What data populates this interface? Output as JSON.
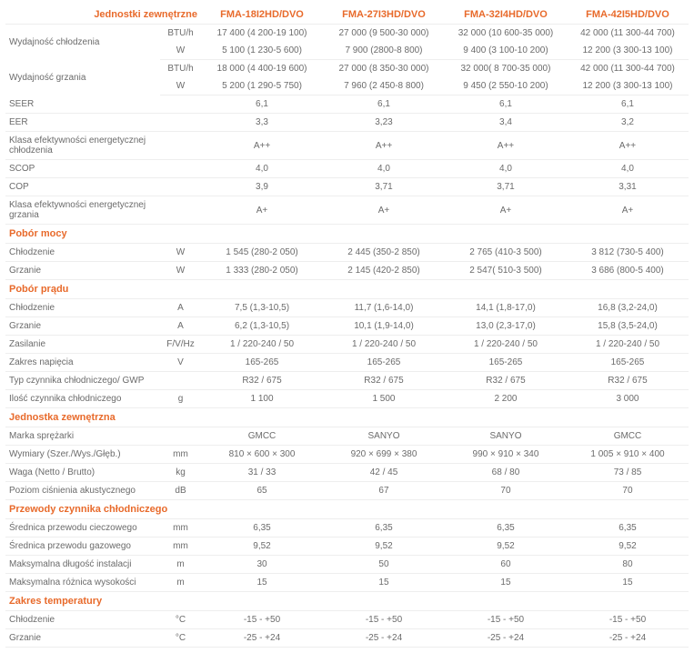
{
  "colors": {
    "accent": "#e86a2b",
    "text": "#6b6b6b",
    "border": "#eeeeee",
    "bg": "#ffffff"
  },
  "fontsize_base": 10,
  "fontsize_header": 11,
  "header": {
    "label": "Jednostki zewnętrzne",
    "models": [
      "FMA-18I2HD/DVO",
      "FMA-27I3HD/DVO",
      "FMA-32I4HD/DVO",
      "FMA-42I5HD/DVO"
    ]
  },
  "rows": [
    {
      "type": "row",
      "label": "Wydajność chłodzenia",
      "unit": "BTU/h",
      "vals": [
        "17 400 (4 200-19 100)",
        "27 000 (9 500-30 000)",
        "32 000 (10 600-35 000)",
        "42 000 (11 300-44 700)"
      ],
      "rowspan": 2
    },
    {
      "type": "sub",
      "unit": "W",
      "vals": [
        "5 100 (1 230-5 600)",
        "7 900 (2800-8 800)",
        "9 400 (3 100-10 200)",
        "12 200 (3 300-13 100)"
      ]
    },
    {
      "type": "row",
      "label": "Wydajność grzania",
      "unit": "BTU/h",
      "vals": [
        "18 000 (4 400-19 600)",
        "27 000 (8 350-30 000)",
        "32 000( 8 700-35 000)",
        "42 000 (11 300-44 700)"
      ],
      "rowspan": 2
    },
    {
      "type": "sub",
      "unit": "W",
      "vals": [
        "5 200 (1 290-5 750)",
        "7 960 (2 450-8 800)",
        "9 450 (2 550-10 200)",
        "12 200 (3 300-13 100)"
      ]
    },
    {
      "type": "row",
      "label": "SEER",
      "unit": "",
      "vals": [
        "6,1",
        "6,1",
        "6,1",
        "6,1"
      ]
    },
    {
      "type": "row",
      "label": "EER",
      "unit": "",
      "vals": [
        "3,3",
        "3,23",
        "3,4",
        "3,2"
      ]
    },
    {
      "type": "row",
      "label": "Klasa efektywności energetycznej chłodzenia",
      "unit": "",
      "vals": [
        "A++",
        "A++",
        "A++",
        "A++"
      ]
    },
    {
      "type": "row",
      "label": "SCOP",
      "unit": "",
      "vals": [
        "4,0",
        "4,0",
        "4,0",
        "4,0"
      ]
    },
    {
      "type": "row",
      "label": "COP",
      "unit": "",
      "vals": [
        "3,9",
        "3,71",
        "3,71",
        "3,31"
      ]
    },
    {
      "type": "row",
      "label": "Klasa efektywności energetycznej grzania",
      "unit": "",
      "vals": [
        "A+",
        "A+",
        "A+",
        "A+"
      ]
    },
    {
      "type": "section",
      "label": "Pobór mocy"
    },
    {
      "type": "row",
      "label": "Chłodzenie",
      "unit": "W",
      "vals": [
        "1 545 (280-2 050)",
        "2 445 (350-2 850)",
        "2 765 (410-3 500)",
        "3 812 (730-5 400)"
      ]
    },
    {
      "type": "row",
      "label": "Grzanie",
      "unit": "W",
      "vals": [
        "1 333 (280-2 050)",
        "2 145 (420-2 850)",
        "2 547( 510-3 500)",
        "3 686 (800-5 400)"
      ]
    },
    {
      "type": "section",
      "label": "Pobór prądu"
    },
    {
      "type": "row",
      "label": "Chłodzenie",
      "unit": "A",
      "vals": [
        "7,5 (1,3-10,5)",
        "11,7 (1,6-14,0)",
        "14,1 (1,8-17,0)",
        "16,8 (3,2-24,0)"
      ]
    },
    {
      "type": "row",
      "label": "Grzanie",
      "unit": "A",
      "vals": [
        "6,2 (1,3-10,5)",
        "10,1 (1,9-14,0)",
        "13,0 (2,3-17,0)",
        "15,8 (3,5-24,0)"
      ]
    },
    {
      "type": "row",
      "label": "Zasilanie",
      "unit": "F/V/Hz",
      "vals": [
        "1 / 220-240 / 50",
        "1 / 220-240 / 50",
        "1 / 220-240 / 50",
        "1 / 220-240 / 50"
      ]
    },
    {
      "type": "row",
      "label": "Zakres napięcia",
      "unit": "V",
      "vals": [
        "165-265",
        "165-265",
        "165-265",
        "165-265"
      ]
    },
    {
      "type": "row",
      "label": "Typ czynnika chłodniczego/ GWP",
      "unit": "",
      "vals": [
        "R32 / 675",
        "R32 / 675",
        "R32 / 675",
        "R32 / 675"
      ]
    },
    {
      "type": "row",
      "label": "Ilość czynnika chłodniczego",
      "unit": "g",
      "vals": [
        "1 100",
        "1 500",
        "2 200",
        "3 000"
      ]
    },
    {
      "type": "section",
      "label": "Jednostka zewnętrzna"
    },
    {
      "type": "row",
      "label": "Marka sprężarki",
      "unit": "",
      "vals": [
        "GMCC",
        "SANYO",
        "SANYO",
        "GMCC"
      ]
    },
    {
      "type": "row",
      "label": "Wymiary (Szer./Wys./Głęb.)",
      "unit": "mm",
      "vals": [
        "810 × 600 × 300",
        "920 × 699 × 380",
        "990 × 910 × 340",
        "1 005 × 910 × 400"
      ]
    },
    {
      "type": "row",
      "label": "Waga (Netto / Brutto)",
      "unit": "kg",
      "vals": [
        "31 / 33",
        "42 / 45",
        "68 / 80",
        "73 / 85"
      ]
    },
    {
      "type": "row",
      "label": "Poziom ciśnienia akustycznego",
      "unit": "dB",
      "vals": [
        "65",
        "67",
        "70",
        "70"
      ]
    },
    {
      "type": "section",
      "label": "Przewody czynnika chłodniczego"
    },
    {
      "type": "row",
      "label": "Średnica przewodu cieczowego",
      "unit": "mm",
      "vals": [
        "6,35",
        "6,35",
        "6,35",
        "6,35"
      ]
    },
    {
      "type": "row",
      "label": "Średnica przewodu gazowego",
      "unit": "mm",
      "vals": [
        "9,52",
        "9,52",
        "9,52",
        "9,52"
      ]
    },
    {
      "type": "row",
      "label": "Maksymalna długość instalacji",
      "unit": "m",
      "vals": [
        "30",
        "50",
        "60",
        "80"
      ]
    },
    {
      "type": "row",
      "label": "Maksymalna różnica wysokości",
      "unit": "m",
      "vals": [
        "15",
        "15",
        "15",
        "15"
      ]
    },
    {
      "type": "section",
      "label": "Zakres temperatury"
    },
    {
      "type": "row",
      "label": "Chłodzenie",
      "unit": "°C",
      "vals": [
        "-15 - +50",
        "-15 - +50",
        "-15 - +50",
        "-15 - +50"
      ]
    },
    {
      "type": "row",
      "label": "Grzanie",
      "unit": "°C",
      "vals": [
        "-25 - +24",
        "-25 - +24",
        "-25 - +24",
        "-25 - +24"
      ]
    }
  ]
}
